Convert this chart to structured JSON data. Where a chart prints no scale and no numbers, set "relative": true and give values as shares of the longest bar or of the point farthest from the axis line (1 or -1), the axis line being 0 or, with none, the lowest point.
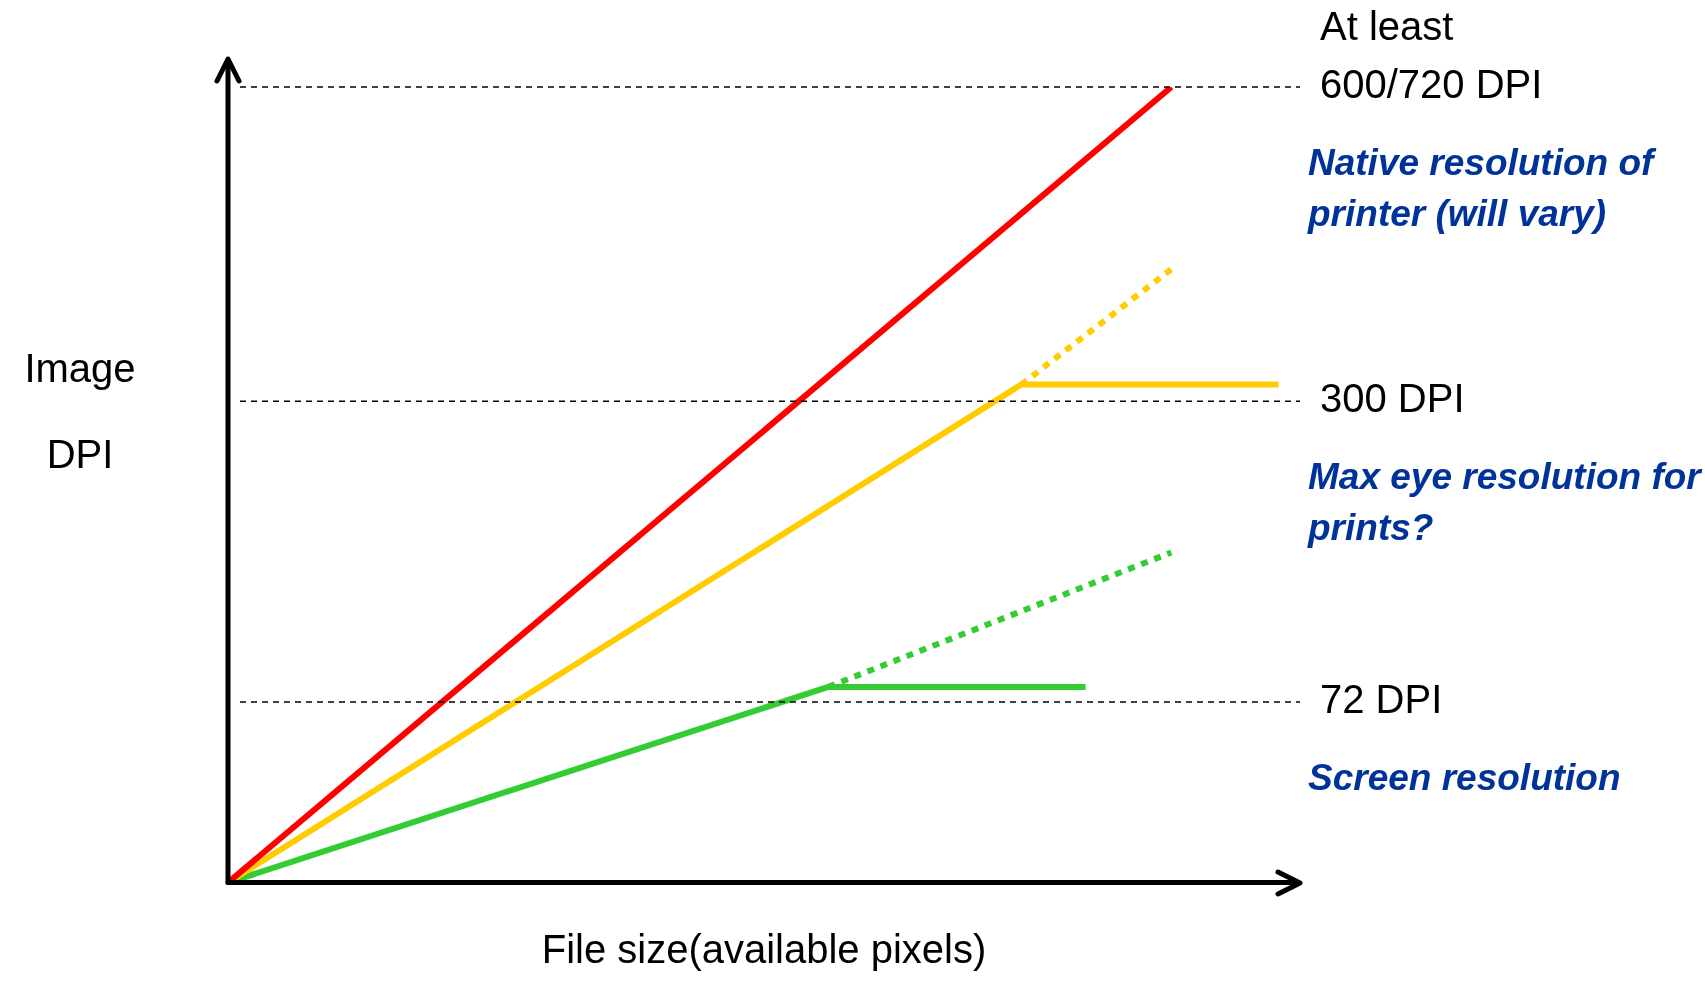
{
  "chart_data": {
    "type": "line",
    "relative": true,
    "xlabel": "File size(available pixels)",
    "ylabel": "Image DPI",
    "grid": false,
    "legend": false,
    "marker": "none",
    "categories": [
      null,
      null,
      null,
      null,
      null,
      null,
      null,
      null,
      null,
      null,
      null,
      null,
      null,
      null,
      null,
      null,
      null,
      null,
      null,
      null,
      null,
      null,
      null,
      null,
      null,
      null,
      null,
      null,
      null,
      null,
      null,
      null,
      null,
      null,
      null,
      null,
      null,
      null,
      null,
      null,
      null,
      null,
      null,
      null,
      null,
      null,
      null,
      null,
      null,
      null,
      null
    ],
    "series": [
      {
        "color": "#ff0000",
        "line_style": "solid",
        "values": [
          0,
          null,
          null,
          null,
          null,
          null,
          null,
          null,
          null,
          null,
          null,
          null,
          null,
          null,
          null,
          null,
          null,
          null,
          null,
          null,
          null,
          null,
          null,
          null,
          null,
          null,
          null,
          null,
          null,
          null,
          null,
          null,
          null,
          null,
          null,
          null,
          null,
          null,
          null,
          null,
          null,
          null,
          null,
          null,
          1,
          null,
          null,
          null,
          null,
          null,
          null
        ]
      },
      {
        "color": "#ffcc00",
        "line_style": "solid",
        "values": [
          0,
          null,
          null,
          null,
          null,
          null,
          null,
          null,
          null,
          null,
          null,
          null,
          null,
          null,
          null,
          null,
          null,
          null,
          null,
          null,
          null,
          null,
          null,
          null,
          null,
          null,
          null,
          null,
          null,
          null,
          null,
          null,
          null,
          null,
          null,
          null,
          null,
          0.626,
          null,
          null,
          null,
          null,
          null,
          null,
          null,
          null,
          null,
          null,
          null,
          0.626,
          null
        ]
      },
      {
        "color": "#ffcc00",
        "line_style": "dotted",
        "values": [
          null,
          null,
          null,
          null,
          null,
          null,
          null,
          null,
          null,
          null,
          null,
          null,
          null,
          null,
          null,
          null,
          null,
          null,
          null,
          null,
          null,
          null,
          null,
          null,
          null,
          null,
          null,
          null,
          null,
          null,
          null,
          null,
          null,
          null,
          null,
          null,
          null,
          0.626,
          null,
          null,
          null,
          null,
          null,
          null,
          0.771,
          null,
          null,
          null,
          null,
          null,
          null
        ]
      },
      {
        "color": "#33cc33",
        "line_style": "solid",
        "values": [
          0,
          null,
          null,
          null,
          null,
          null,
          null,
          null,
          null,
          null,
          null,
          null,
          null,
          null,
          null,
          null,
          null,
          null,
          null,
          null,
          null,
          null,
          null,
          null,
          null,
          null,
          null,
          null,
          0.246,
          null,
          null,
          null,
          null,
          null,
          null,
          null,
          null,
          null,
          null,
          null,
          0.246,
          null,
          null,
          null,
          null,
          null,
          null,
          null,
          null,
          null,
          null
        ]
      },
      {
        "color": "#33cc33",
        "line_style": "dotted",
        "values": [
          null,
          null,
          null,
          null,
          null,
          null,
          null,
          null,
          null,
          null,
          null,
          null,
          null,
          null,
          null,
          null,
          null,
          null,
          null,
          null,
          null,
          null,
          null,
          null,
          null,
          null,
          null,
          null,
          0.246,
          null,
          null,
          null,
          null,
          null,
          null,
          null,
          null,
          null,
          null,
          null,
          null,
          null,
          null,
          null,
          0.415,
          null,
          null,
          null,
          null,
          null,
          null
        ]
      }
    ],
    "ref_lines": [
      {
        "axis": "y",
        "value": 1,
        "label": "At least\n600/720 DPI",
        "color": "#000000",
        "line_style": "dashed"
      },
      {
        "axis": "y",
        "value": 0.605,
        "label": "300 DPI",
        "color": "#000000",
        "line_style": "dashed"
      },
      {
        "axis": "y",
        "value": 0.227,
        "label": "72 DPI",
        "color": "#000000",
        "line_style": "dashed"
      }
    ],
    "annotations": [
      "Native resolution of printer (will vary)",
      "Max eye resolution for prints?",
      "Screen resolution"
    ]
  }
}
